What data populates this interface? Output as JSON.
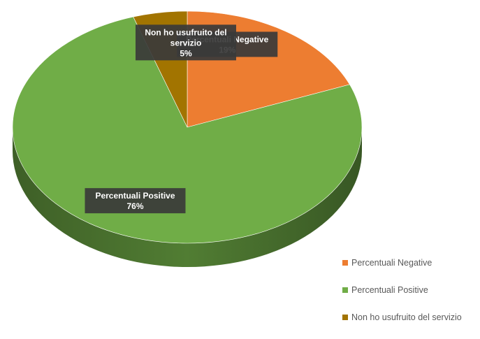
{
  "chart_data": {
    "type": "pie",
    "style": "3d",
    "categories": [
      "Percentuali Negative",
      "Percentuali Positive",
      "Non ho usufruito del servizio"
    ],
    "values": [
      19,
      76,
      5
    ],
    "colors": [
      "#ED7D31",
      "#70AD47",
      "#A27400"
    ],
    "data_labels": [
      {
        "name": "Percentuali Negative",
        "lines": [
          "Percentuali Negative"
        ],
        "value": "19%"
      },
      {
        "name": "Percentuali Positive",
        "lines": [
          "Percentuali Positive"
        ],
        "value": "76%"
      },
      {
        "name": "Non ho usufruito del servizio",
        "lines": [
          "Non ho usufruito del",
          "servizio"
        ],
        "value": "5%"
      }
    ],
    "legend": {
      "position": "bottom-right",
      "items": [
        {
          "label": "Percentuali Negative",
          "color": "#ED7D31"
        },
        {
          "label": "Percentuali Positive",
          "color": "#70AD47"
        },
        {
          "label": "Non ho usufruito del servizio",
          "color": "#A27400"
        }
      ]
    }
  }
}
